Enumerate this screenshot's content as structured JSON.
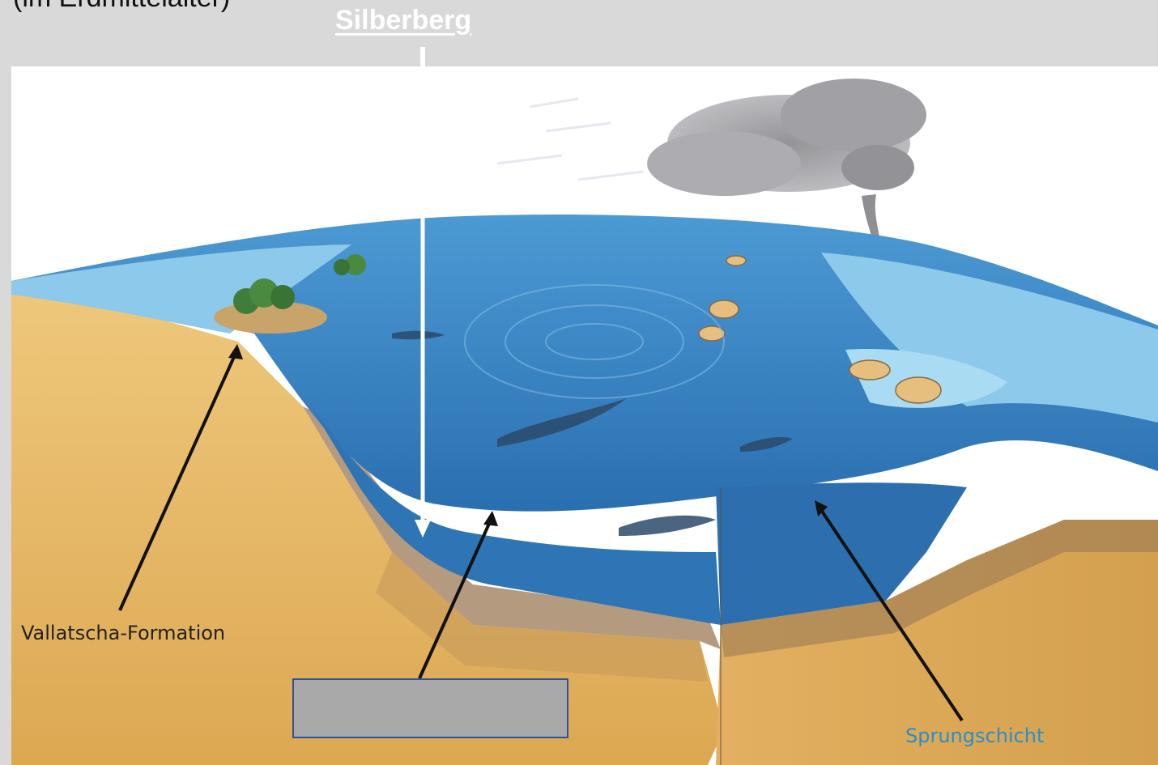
{
  "header": {
    "caption": "(im Erdmittelalter)",
    "pointer_label": "Silberberg"
  },
  "labels": {
    "left": "Vallatscha-Formation",
    "right": "Sprungschicht"
  },
  "answer_box": {
    "value": ""
  },
  "colors": {
    "background": "#d9d9d9",
    "sediment": "#e6b86a",
    "ocean": "#3d86c6",
    "shallow_water": "#8cc9ea",
    "box_fill": "#a9a9a9",
    "box_border": "#2f4f9e",
    "sprung_label": "#2a8fc8"
  }
}
